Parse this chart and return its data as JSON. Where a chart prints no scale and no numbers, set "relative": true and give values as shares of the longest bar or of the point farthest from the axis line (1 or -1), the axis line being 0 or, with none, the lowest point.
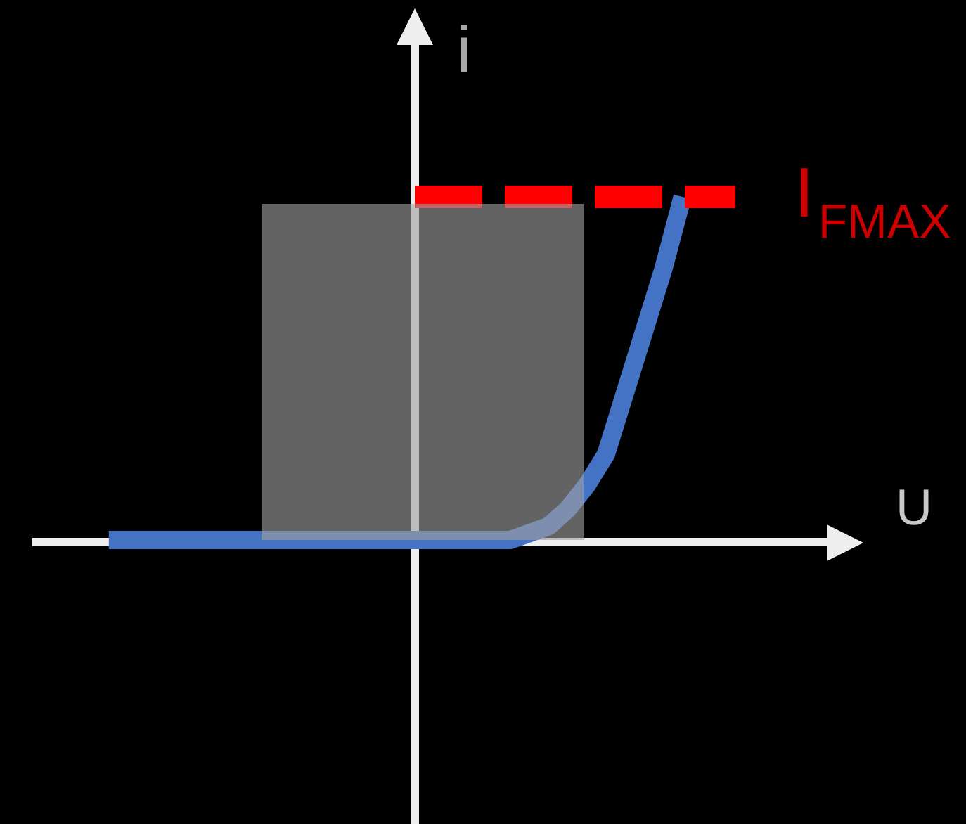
{
  "chart_data": {
    "type": "line",
    "relative": true,
    "xlabel": "U",
    "ylabel": "i",
    "categories": [
      null,
      null,
      null,
      null,
      null,
      null,
      null,
      null,
      null,
      null,
      null,
      null,
      null,
      null,
      null,
      null,
      null,
      null,
      null,
      null,
      null,
      null,
      null,
      null,
      null,
      null,
      null,
      null,
      null,
      null,
      null,
      null,
      null,
      null,
      null,
      null,
      null,
      null,
      null,
      null,
      null
    ],
    "values": [
      null,
      null,
      null,
      null,
      0,
      0,
      0,
      0,
      0,
      0,
      0,
      0,
      0,
      0,
      0,
      0,
      0,
      0,
      0,
      0,
      0,
      0,
      0,
      0,
      0,
      0,
      0.02,
      0.04,
      0.09,
      0.16,
      0.25,
      0.43,
      0.61,
      0.79,
      1,
      null,
      null,
      null,
      null,
      null,
      null
    ],
    "color": "#4472c4",
    "ref_lines": [
      {
        "axis": "y",
        "value": 1,
        "label": "I$_{FMAX}$",
        "color": "#ff0000",
        "line_style": "dashed"
      }
    ]
  }
}
